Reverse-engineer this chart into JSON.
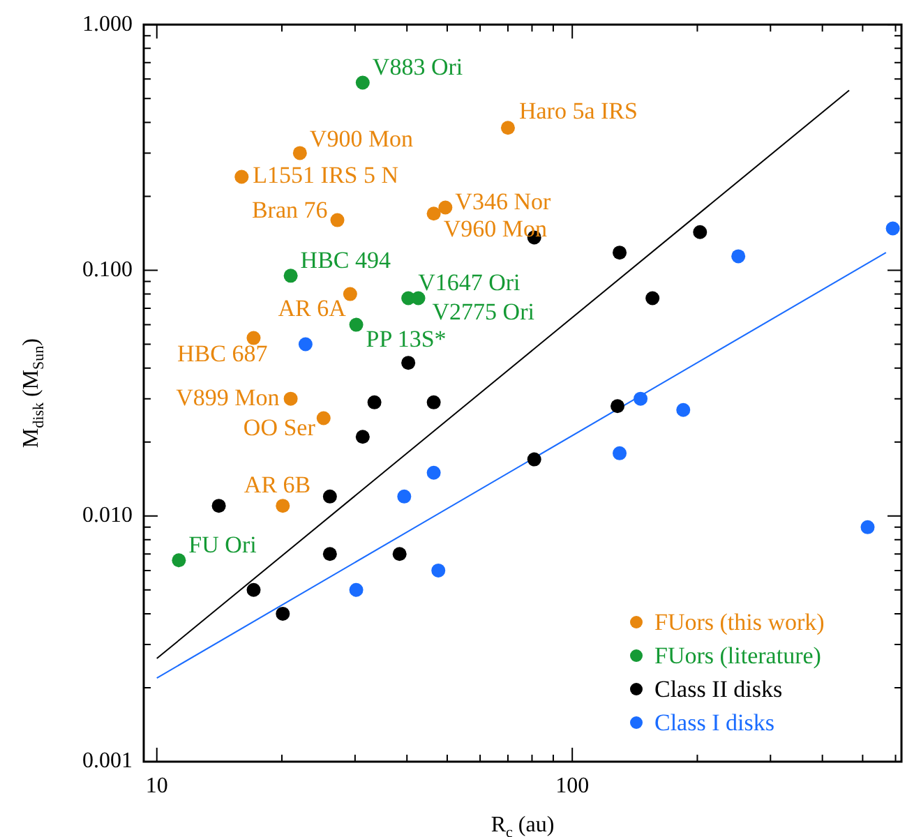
{
  "chart_data": {
    "type": "scatter",
    "log": "xy",
    "xlabel": "R$_{c}$ (au)",
    "ylabel": "M$_{disk}$ (M$_{Sun}$)",
    "xlim": [
      9.3,
      620
    ],
    "ylim": [
      0.001,
      1
    ],
    "xticks": [
      10,
      {
        "value": 20,
        "label": null
      },
      {
        "value": 30,
        "label": null
      },
      {
        "value": 40,
        "label": null
      },
      {
        "value": 50,
        "label": null
      },
      {
        "value": 60,
        "label": null
      },
      {
        "value": 70,
        "label": null
      },
      {
        "value": 80,
        "label": null
      },
      {
        "value": 90,
        "label": null
      },
      100,
      {
        "value": 200,
        "label": null
      },
      {
        "value": 300,
        "label": null
      },
      {
        "value": 400,
        "label": null
      },
      {
        "value": 500,
        "label": null
      },
      {
        "value": 600,
        "label": null
      }
    ],
    "yticks": [
      0.001,
      {
        "value": 0.002,
        "label": null
      },
      {
        "value": 0.003,
        "label": null
      },
      {
        "value": 0.004,
        "label": null
      },
      {
        "value": 0.005,
        "label": null
      },
      {
        "value": 0.006,
        "label": null
      },
      {
        "value": 0.007,
        "label": null
      },
      {
        "value": 0.008,
        "label": null
      },
      {
        "value": 0.009,
        "label": null
      },
      {
        "value": 0.01,
        "label": "0.010"
      },
      {
        "value": 0.02,
        "label": null
      },
      {
        "value": 0.03,
        "label": null
      },
      {
        "value": 0.04,
        "label": null
      },
      {
        "value": 0.05,
        "label": null
      },
      {
        "value": 0.06,
        "label": null
      },
      {
        "value": 0.07,
        "label": null
      },
      {
        "value": 0.08,
        "label": null
      },
      {
        "value": 0.09,
        "label": null
      },
      {
        "value": 0.1,
        "label": "0.100"
      },
      {
        "value": 0.2,
        "label": null
      },
      {
        "value": 0.3,
        "label": null
      },
      {
        "value": 0.4,
        "label": null
      },
      {
        "value": 0.5,
        "label": null
      },
      {
        "value": 0.6,
        "label": null
      },
      {
        "value": 0.7,
        "label": null
      },
      {
        "value": 0.8,
        "label": null
      },
      {
        "value": 0.9,
        "label": null
      },
      {
        "value": 1,
        "label": "1.000"
      }
    ],
    "marker": "circle",
    "legend": "bottom right",
    "series": [
      {
        "name": "FUors (this work)",
        "color": "#e8870e",
        "x": [
          70,
          22.1,
          16,
          27.2,
          49.5,
          46.4,
          29.2,
          17.1,
          21,
          25.2,
          20.1
        ],
        "values": [
          0.38,
          0.3,
          0.24,
          0.16,
          0.18,
          0.17,
          0.08,
          0.053,
          0.03,
          0.025,
          0.011
        ]
      },
      {
        "name": "FUors (literature)",
        "color": "#159a35",
        "x": [
          31.3,
          21,
          40.3,
          42.6,
          30.2,
          11.3
        ],
        "values": [
          0.58,
          0.095,
          0.077,
          0.077,
          0.06,
          0.0066
        ]
      },
      {
        "name": "Class II disks",
        "color": "#000000",
        "x": [
          40.3,
          81,
          130,
          203,
          156,
          33.4,
          46.4,
          31.3,
          14.1,
          26.1,
          81,
          26.1,
          38.4,
          17.1,
          20.1,
          128.5
        ],
        "values": [
          0.042,
          0.136,
          0.118,
          0.143,
          0.077,
          0.029,
          0.029,
          0.021,
          0.011,
          0.012,
          0.017,
          0.007,
          0.007,
          0.005,
          0.004,
          0.028
        ]
      },
      {
        "name": "Class I disks",
        "color": "#1a6cff",
        "x": [
          22.8,
          251,
          591,
          46.4,
          39.4,
          30.2,
          47.6,
          146,
          185,
          130,
          514
        ],
        "values": [
          0.05,
          0.114,
          0.148,
          0.015,
          0.012,
          0.005,
          0.006,
          0.03,
          0.027,
          0.018,
          0.009
        ]
      },
      {
        "type": "line",
        "marker": "none",
        "color": "#000000",
        "x": [
          10,
          464
        ],
        "values": [
          0.00263,
          0.54
        ]
      },
      {
        "type": "line",
        "marker": "none",
        "color": "#1a6cff",
        "x": [
          10,
          569
        ],
        "values": [
          0.00219,
          0.118
        ]
      }
    ],
    "annotations": [
      {
        "text": "V883 Ori",
        "x": 31.3,
        "y": 0.58
      },
      {
        "text": "Haro 5a IRS",
        "x": 70,
        "y": 0.38
      },
      {
        "text": "V900 Mon",
        "x": 22.1,
        "y": 0.3
      },
      {
        "text": "L1551 IRS 5 N",
        "x": 16,
        "y": 0.24
      },
      {
        "text": "Bran 76",
        "x": 27.2,
        "y": 0.16
      },
      {
        "text": "V346 Nor",
        "x": 49.5,
        "y": 0.18
      },
      {
        "text": "V960 Mon",
        "x": 46.4,
        "y": 0.17
      },
      {
        "text": "HBC 494",
        "x": 21,
        "y": 0.095
      },
      {
        "text": "V1647 Ori",
        "x": 40.3,
        "y": 0.077
      },
      {
        "text": "V2775 Ori",
        "x": 42.6,
        "y": 0.077
      },
      {
        "text": "AR 6A",
        "x": 29.2,
        "y": 0.08
      },
      {
        "text": "PP 13S*",
        "x": 30.2,
        "y": 0.06
      },
      {
        "text": "HBC 687",
        "x": 17.1,
        "y": 0.053
      },
      {
        "text": "V899 Mon",
        "x": 21,
        "y": 0.03
      },
      {
        "text": "OO Ser",
        "x": 25.2,
        "y": 0.025
      },
      {
        "text": "AR 6B",
        "x": 20.1,
        "y": 0.011
      },
      {
        "text": "FU Ori",
        "x": 11.3,
        "y": 0.0066
      }
    ]
  }
}
